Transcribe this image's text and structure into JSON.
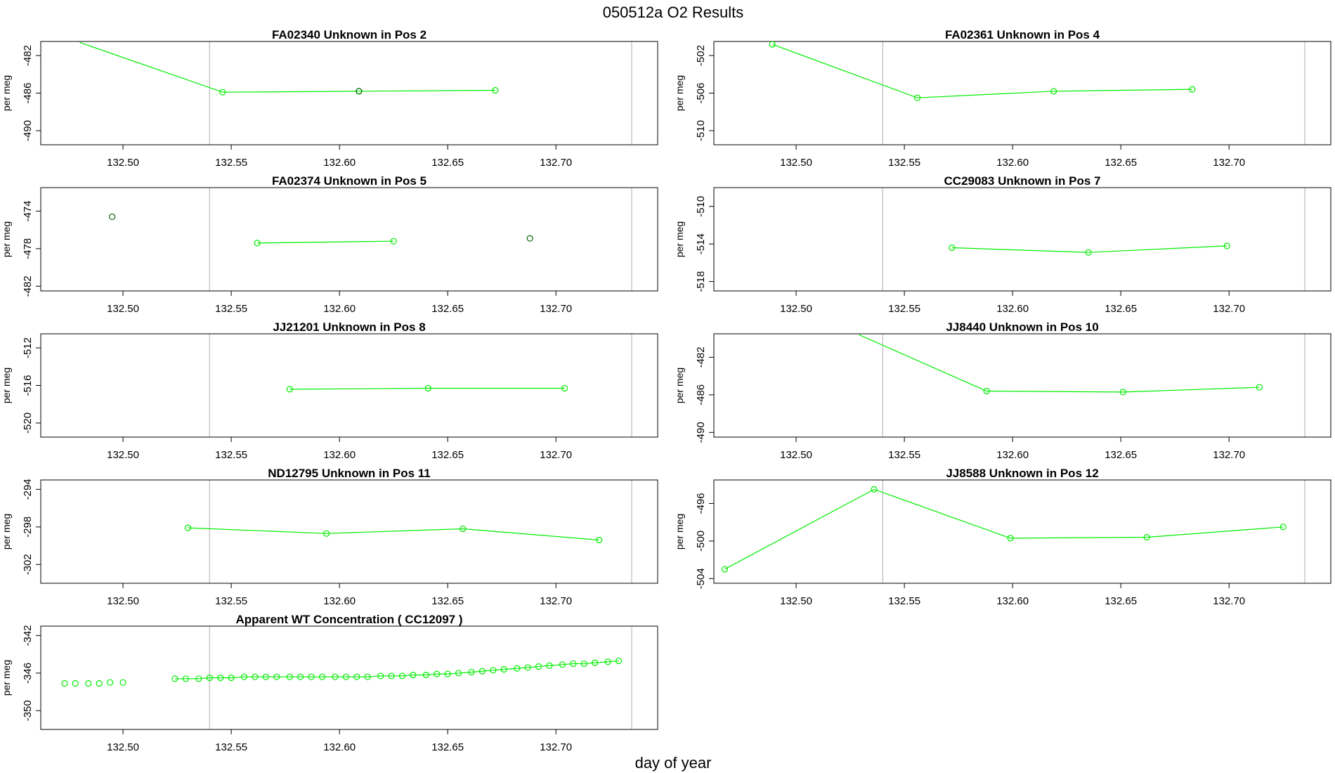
{
  "title": "050512a  O2 Results",
  "xlabel": "day of year",
  "colors": {
    "line": "#00ee00",
    "point_alt": "#006400",
    "vline": "#bbbbbb",
    "axis": "#000000"
  },
  "chart_data": [
    {
      "type": "line",
      "title": "FA02340    Unknown in Pos 2",
      "ylabel": "per meg",
      "xlim": [
        132.462,
        132.747
      ],
      "ylim": [
        -491.5,
        -480.5
      ],
      "xticks": [
        {
          "v": 132.5,
          "label": "132.50"
        },
        {
          "v": 132.55,
          "label": "132.55"
        },
        {
          "v": 132.6,
          "label": "132.60"
        },
        {
          "v": 132.65,
          "label": "132.65"
        },
        {
          "v": 132.7,
          "label": "132.70"
        }
      ],
      "yticks": [
        {
          "v": -482,
          "label": "-482"
        },
        {
          "v": -486,
          "label": "-486"
        },
        {
          "v": -490,
          "label": "-490"
        }
      ],
      "vlines": [
        132.54,
        132.735
      ],
      "series": [
        {
          "name": "data",
          "x": [
            132.48,
            132.546,
            132.609,
            132.672
          ],
          "y": [
            -480.6,
            -485.9,
            -485.8,
            -485.7
          ],
          "marker_x": [
            132.546,
            132.609,
            132.672
          ],
          "marker_y": [
            -485.9,
            -485.8,
            -485.7
          ]
        }
      ],
      "highlight": [
        {
          "x": 132.609,
          "y": -485.8
        }
      ]
    },
    {
      "type": "line",
      "title": "FA02361    Unknown in Pos 4",
      "ylabel": "per meg",
      "xlim": [
        132.462,
        132.747
      ],
      "ylim": [
        -511.5,
        -500.5
      ],
      "xticks": [
        {
          "v": 132.5,
          "label": "132.50"
        },
        {
          "v": 132.55,
          "label": "132.55"
        },
        {
          "v": 132.6,
          "label": "132.60"
        },
        {
          "v": 132.65,
          "label": "132.65"
        },
        {
          "v": 132.7,
          "label": "132.70"
        }
      ],
      "yticks": [
        {
          "v": -502,
          "label": "-502"
        },
        {
          "v": -506,
          "label": "-506"
        },
        {
          "v": -510,
          "label": "-510"
        }
      ],
      "vlines": [
        132.54,
        132.735
      ],
      "series": [
        {
          "name": "data",
          "x": [
            132.489,
            132.556,
            132.619,
            132.683
          ],
          "y": [
            -500.8,
            -506.5,
            -505.8,
            -505.6
          ],
          "marker_x": [
            132.489,
            132.556,
            132.619,
            132.683
          ],
          "marker_y": [
            -500.8,
            -506.5,
            -505.8,
            -505.6
          ]
        }
      ],
      "highlight": []
    },
    {
      "type": "line",
      "title": "FA02374    Unknown in Pos 5",
      "ylabel": "per meg",
      "xlim": [
        132.462,
        132.747
      ],
      "ylim": [
        -482.5,
        -471.5
      ],
      "xticks": [
        {
          "v": 132.5,
          "label": "132.50"
        },
        {
          "v": 132.55,
          "label": "132.55"
        },
        {
          "v": 132.6,
          "label": "132.60"
        },
        {
          "v": 132.65,
          "label": "132.65"
        },
        {
          "v": 132.7,
          "label": "132.70"
        }
      ],
      "yticks": [
        {
          "v": -474,
          "label": "-474"
        },
        {
          "v": -478,
          "label": "-478"
        },
        {
          "v": -482,
          "label": "-482"
        }
      ],
      "vlines": [
        132.54,
        132.735
      ],
      "series": [
        {
          "name": "data",
          "x": [
            132.562,
            132.625
          ],
          "y": [
            -477.4,
            -477.2
          ],
          "marker_x": [
            132.562,
            132.625
          ],
          "marker_y": [
            -477.4,
            -477.2
          ]
        }
      ],
      "highlight": [
        {
          "x": 132.495,
          "y": -474.6
        },
        {
          "x": 132.688,
          "y": -476.9
        }
      ]
    },
    {
      "type": "line",
      "title": "CC29083    Unknown in Pos 7",
      "ylabel": "per meg",
      "xlim": [
        132.462,
        132.747
      ],
      "ylim": [
        -519,
        -508
      ],
      "xticks": [
        {
          "v": 132.5,
          "label": "132.50"
        },
        {
          "v": 132.55,
          "label": "132.55"
        },
        {
          "v": 132.6,
          "label": "132.60"
        },
        {
          "v": 132.65,
          "label": "132.65"
        },
        {
          "v": 132.7,
          "label": "132.70"
        }
      ],
      "yticks": [
        {
          "v": -510,
          "label": "-510"
        },
        {
          "v": -514,
          "label": "-514"
        },
        {
          "v": -518,
          "label": "-518"
        }
      ],
      "vlines": [
        132.54,
        132.735
      ],
      "series": [
        {
          "name": "data",
          "x": [
            132.572,
            132.635,
            132.699
          ],
          "y": [
            -514.4,
            -514.9,
            -514.2
          ],
          "marker_x": [
            132.572,
            132.635,
            132.699
          ],
          "marker_y": [
            -514.4,
            -514.9,
            -514.2
          ]
        }
      ],
      "highlight": []
    },
    {
      "type": "line",
      "title": "JJ21201    Unknown in Pos 8",
      "ylabel": "per meg",
      "xlim": [
        132.462,
        132.747
      ],
      "ylim": [
        -521.5,
        -510.5
      ],
      "xticks": [
        {
          "v": 132.5,
          "label": "132.50"
        },
        {
          "v": 132.55,
          "label": "132.55"
        },
        {
          "v": 132.6,
          "label": "132.60"
        },
        {
          "v": 132.65,
          "label": "132.65"
        },
        {
          "v": 132.7,
          "label": "132.70"
        }
      ],
      "yticks": [
        {
          "v": -512,
          "label": "-512"
        },
        {
          "v": -516,
          "label": "-516"
        },
        {
          "v": -520,
          "label": "-520"
        }
      ],
      "vlines": [
        132.54,
        132.735
      ],
      "series": [
        {
          "name": "data",
          "x": [
            132.577,
            132.641,
            132.704
          ],
          "y": [
            -516.4,
            -516.3,
            -516.3
          ],
          "marker_x": [
            132.577,
            132.641,
            132.704
          ],
          "marker_y": [
            -516.4,
            -516.3,
            -516.3
          ]
        }
      ],
      "highlight": []
    },
    {
      "type": "line",
      "title": "JJ8440    Unknown in Pos 10",
      "ylabel": "per meg",
      "xlim": [
        132.462,
        132.747
      ],
      "ylim": [
        -490.5,
        -479.5
      ],
      "xticks": [
        {
          "v": 132.5,
          "label": "132.50"
        },
        {
          "v": 132.55,
          "label": "132.55"
        },
        {
          "v": 132.6,
          "label": "132.60"
        },
        {
          "v": 132.65,
          "label": "132.65"
        },
        {
          "v": 132.7,
          "label": "132.70"
        }
      ],
      "yticks": [
        {
          "v": -482,
          "label": "-482"
        },
        {
          "v": -486,
          "label": "-486"
        },
        {
          "v": -490,
          "label": "-490"
        }
      ],
      "vlines": [
        132.54,
        132.735
      ],
      "series": [
        {
          "name": "data",
          "x": [
            132.529,
            132.588,
            132.651,
            132.714
          ],
          "y": [
            -479.6,
            -485.6,
            -485.7,
            -485.2
          ],
          "marker_x": [
            132.588,
            132.651,
            132.714
          ],
          "marker_y": [
            -485.6,
            -485.7,
            -485.2
          ]
        }
      ],
      "highlight": []
    },
    {
      "type": "line",
      "title": "ND12795    Unknown in Pos 11",
      "ylabel": "per meg",
      "xlim": [
        132.462,
        132.747
      ],
      "ylim": [
        -304,
        -293
      ],
      "xticks": [
        {
          "v": 132.5,
          "label": "132.50"
        },
        {
          "v": 132.55,
          "label": "132.55"
        },
        {
          "v": 132.6,
          "label": "132.60"
        },
        {
          "v": 132.65,
          "label": "132.65"
        },
        {
          "v": 132.7,
          "label": "132.70"
        }
      ],
      "yticks": [
        {
          "v": -294,
          "label": "-294"
        },
        {
          "v": -298,
          "label": "-298"
        },
        {
          "v": -302,
          "label": "-302"
        }
      ],
      "vlines": [
        132.54,
        132.735
      ],
      "series": [
        {
          "name": "data",
          "x": [
            132.53,
            132.594,
            132.657,
            132.72
          ],
          "y": [
            -298.1,
            -298.7,
            -298.2,
            -299.4
          ],
          "marker_x": [
            132.53,
            132.594,
            132.657,
            132.72
          ],
          "marker_y": [
            -298.1,
            -298.7,
            -298.2,
            -299.4
          ]
        }
      ],
      "highlight": []
    },
    {
      "type": "line",
      "title": "JJ8588    Unknown in Pos 12",
      "ylabel": "per meg",
      "xlim": [
        132.462,
        132.747
      ],
      "ylim": [
        -504.5,
        -493.5
      ],
      "xticks": [
        {
          "v": 132.5,
          "label": "132.50"
        },
        {
          "v": 132.55,
          "label": "132.55"
        },
        {
          "v": 132.6,
          "label": "132.60"
        },
        {
          "v": 132.65,
          "label": "132.65"
        },
        {
          "v": 132.7,
          "label": "132.70"
        }
      ],
      "yticks": [
        {
          "v": -496,
          "label": "-496"
        },
        {
          "v": -500,
          "label": "-500"
        },
        {
          "v": -504,
          "label": "-504"
        }
      ],
      "vlines": [
        132.54,
        132.735
      ],
      "series": [
        {
          "name": "data",
          "x": [
            132.467,
            132.536,
            132.599,
            132.662,
            132.725
          ],
          "y": [
            -503.0,
            -494.5,
            -499.7,
            -499.6,
            -498.5
          ],
          "marker_x": [
            132.467,
            132.536,
            132.599,
            132.662,
            132.725
          ],
          "marker_y": [
            -503.0,
            -494.5,
            -499.7,
            -499.6,
            -498.5
          ]
        }
      ],
      "highlight": []
    },
    {
      "type": "line",
      "title": "Apparent WT Concentration ( CC12097 )",
      "ylabel": "per meg",
      "xlim": [
        132.462,
        132.747
      ],
      "ylim": [
        -352,
        -341
      ],
      "xticks": [
        {
          "v": 132.5,
          "label": "132.50"
        },
        {
          "v": 132.55,
          "label": "132.55"
        },
        {
          "v": 132.6,
          "label": "132.60"
        },
        {
          "v": 132.65,
          "label": "132.65"
        },
        {
          "v": 132.7,
          "label": "132.70"
        }
      ],
      "yticks": [
        {
          "v": -342,
          "label": "-342"
        },
        {
          "v": -346,
          "label": "-346"
        },
        {
          "v": -350,
          "label": "-350"
        }
      ],
      "vlines": [
        132.54,
        132.735
      ],
      "series": [
        {
          "name": "data",
          "x": [
            132.473,
            132.478,
            132.484,
            132.489,
            132.494,
            132.5,
            132.524,
            132.529,
            132.535,
            132.54,
            132.545,
            132.55,
            132.556,
            132.561,
            132.566,
            132.571,
            132.577,
            132.582,
            132.587,
            132.592,
            132.598,
            132.603,
            132.608,
            132.613,
            132.619,
            132.624,
            132.629,
            132.634,
            132.64,
            132.645,
            132.65,
            132.655,
            132.661,
            132.666,
            132.671,
            132.676,
            132.682,
            132.687,
            132.692,
            132.697,
            132.703,
            132.708,
            132.713,
            132.718,
            132.724,
            132.729
          ],
          "y": [
            -347.1,
            -347.1,
            -347.1,
            -347.1,
            -347.0,
            -347.0,
            -346.6,
            -346.6,
            -346.6,
            -346.5,
            -346.5,
            -346.5,
            -346.4,
            -346.4,
            -346.4,
            -346.4,
            -346.4,
            -346.4,
            -346.4,
            -346.4,
            -346.4,
            -346.4,
            -346.4,
            -346.4,
            -346.3,
            -346.3,
            -346.3,
            -346.2,
            -346.2,
            -346.1,
            -346.1,
            -346.0,
            -345.9,
            -345.8,
            -345.7,
            -345.6,
            -345.5,
            -345.4,
            -345.3,
            -345.2,
            -345.1,
            -345.0,
            -345.0,
            -344.9,
            -344.8,
            -344.7
          ],
          "connect_first": 6
        }
      ],
      "highlight": []
    }
  ]
}
